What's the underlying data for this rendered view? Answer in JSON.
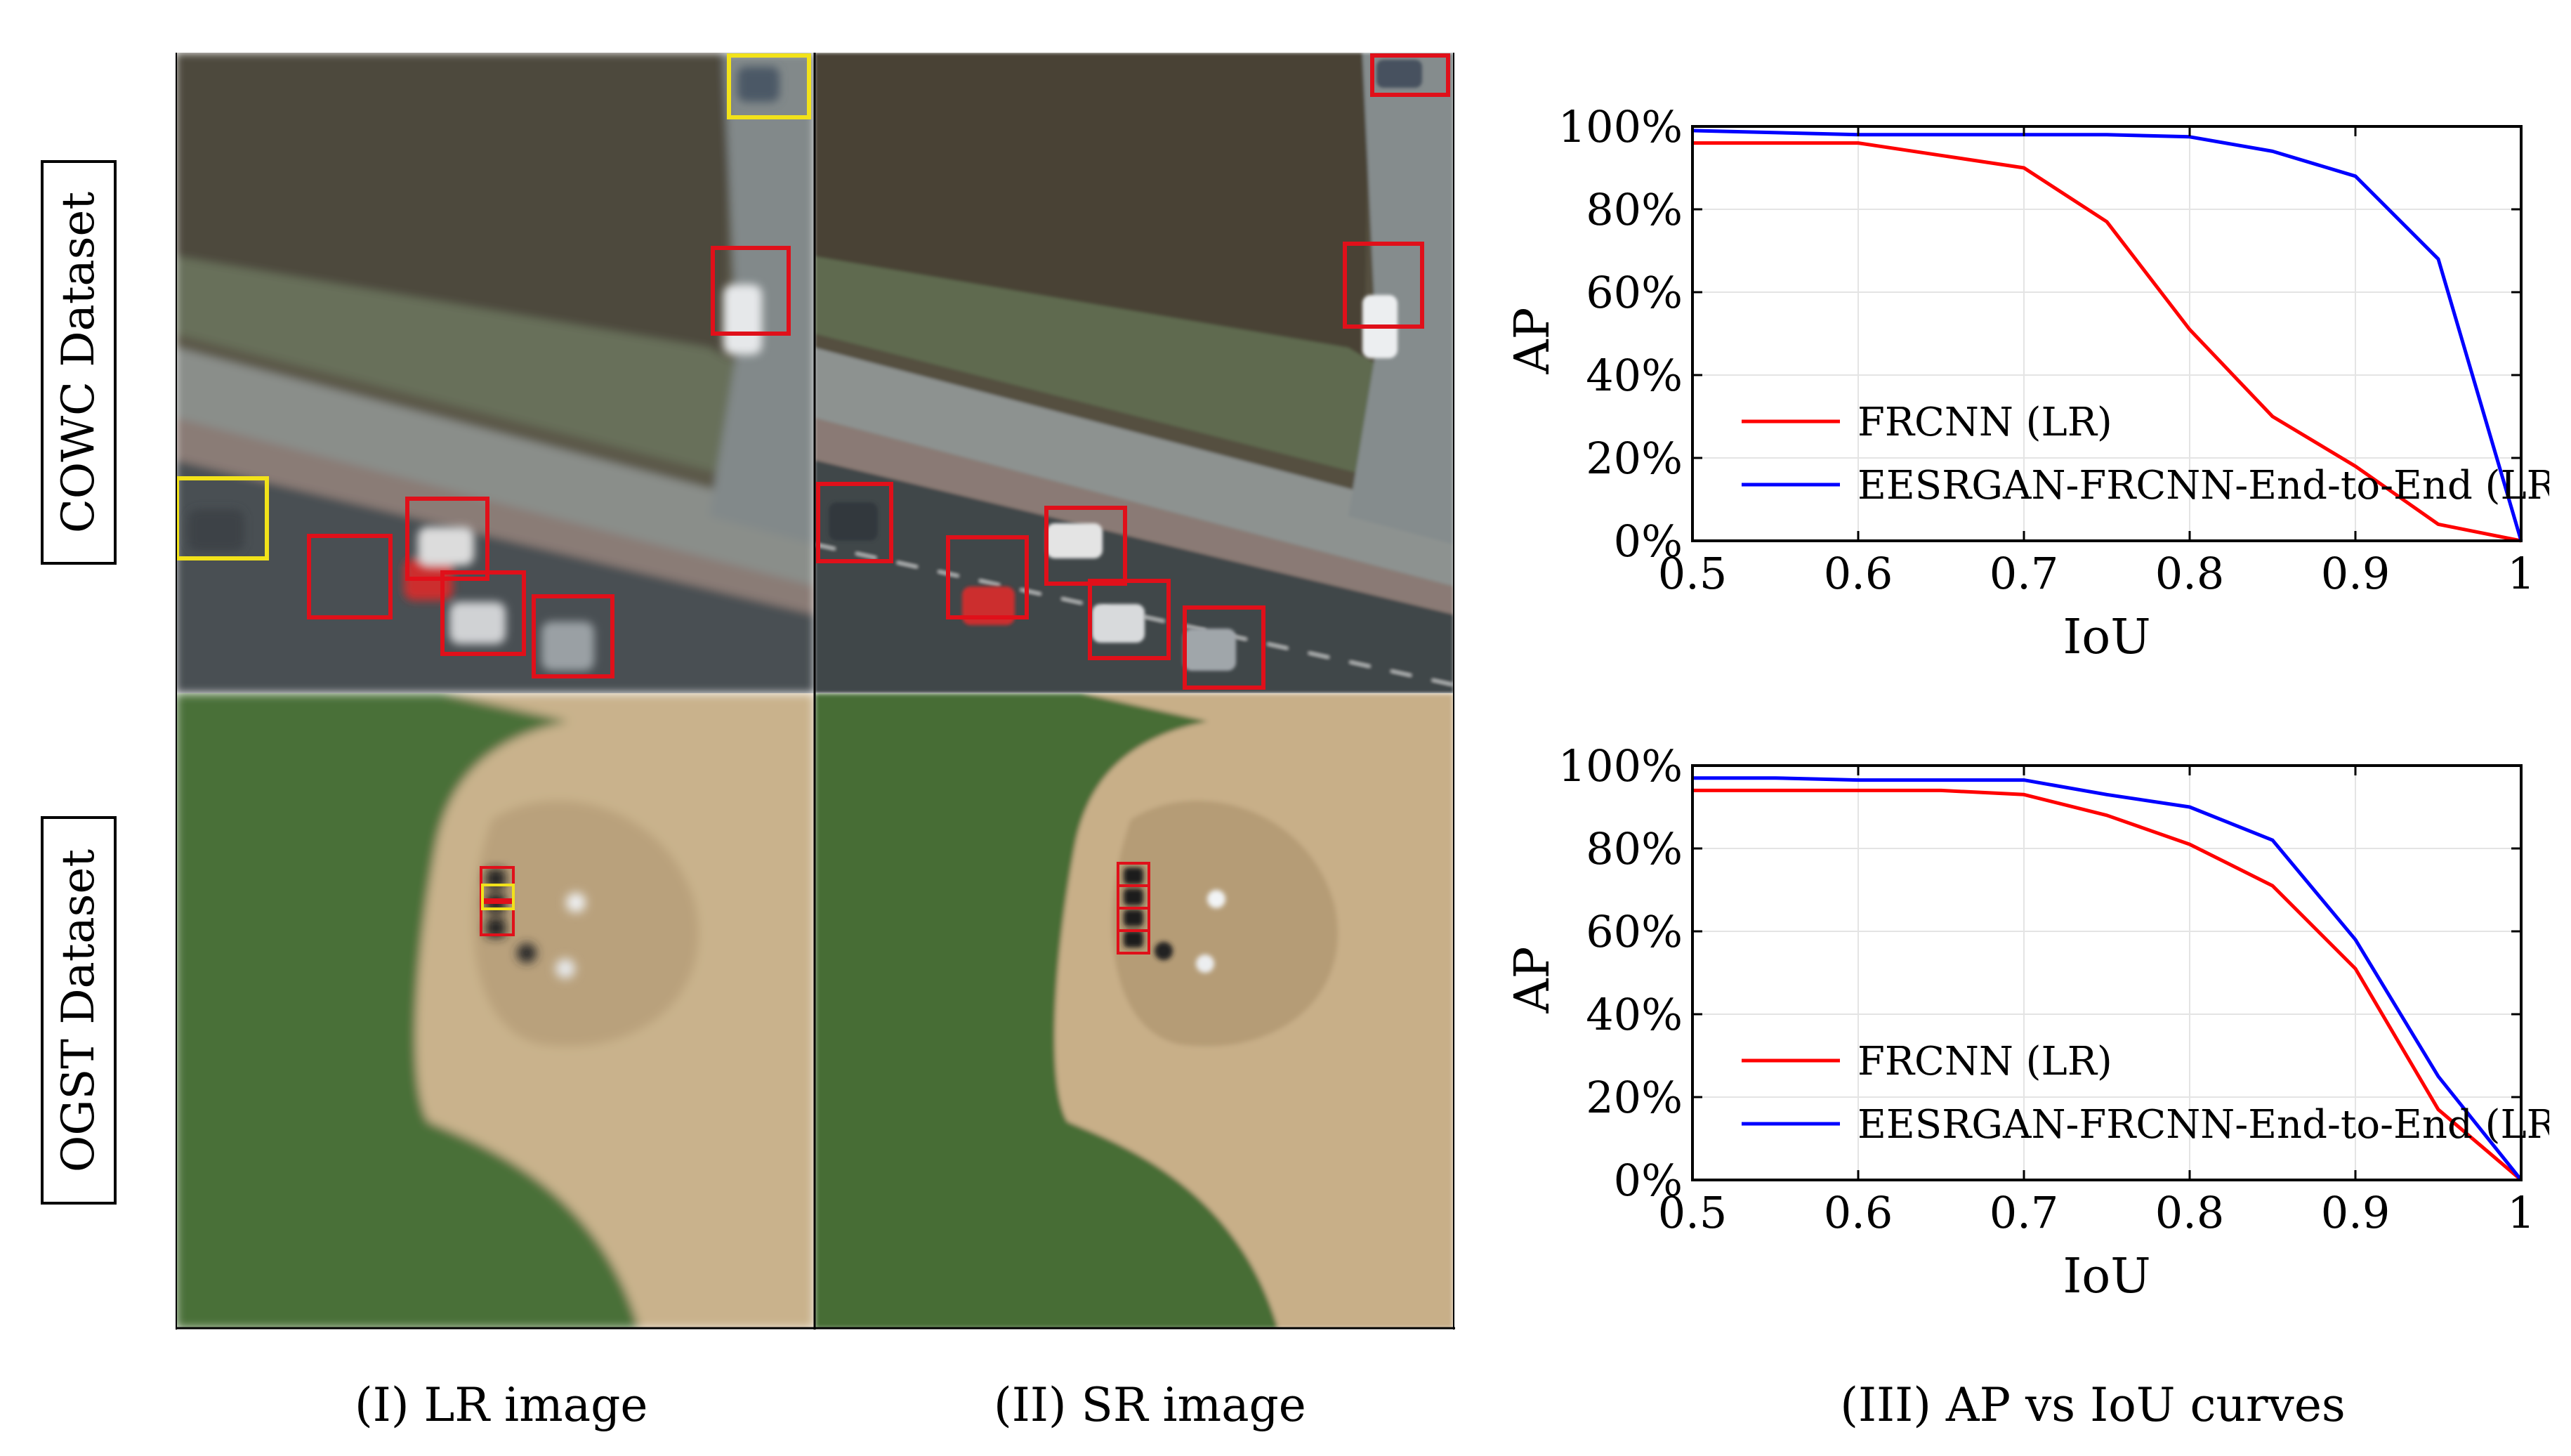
{
  "row_labels": {
    "top": "COWC Dataset",
    "bottom": "OGST Dataset"
  },
  "captions": {
    "lr": "(I) LR image",
    "sr": "(II) SR image",
    "curves": "(III) AP vs IoU curves"
  },
  "colors": {
    "frcnn": "#ff0000",
    "eesrgan": "#0000ff",
    "true_positive_box": "#e0101a",
    "false_negative_box": "#f2e21a"
  },
  "chart_data": [
    {
      "type": "line",
      "dataset": "COWC Dataset",
      "xlabel": "IoU",
      "ylabel": "AP",
      "xlim": [
        0.5,
        1
      ],
      "ylim": [
        0,
        100
      ],
      "x_ticks": [
        "0.5",
        "0.6",
        "0.7",
        "0.8",
        "0.9",
        "1"
      ],
      "y_ticks": [
        "0%",
        "20%",
        "40%",
        "60%",
        "80%",
        "100%"
      ],
      "grid": true,
      "legend_position": "bottom-left",
      "series": [
        {
          "name": "FRCNN (LR)",
          "color": "#ff0000",
          "x": [
            0.5,
            0.6,
            0.65,
            0.7,
            0.75,
            0.8,
            0.85,
            0.9,
            0.95,
            1.0
          ],
          "y": [
            96,
            96,
            93,
            90,
            77,
            51,
            30,
            18,
            4,
            0
          ]
        },
        {
          "name": "EESRGAN-FRCNN-End-to-End (LR)",
          "color": "#0000ff",
          "x": [
            0.5,
            0.6,
            0.7,
            0.75,
            0.8,
            0.85,
            0.9,
            0.95,
            1.0
          ],
          "y": [
            99,
            98,
            98,
            98,
            97.5,
            94,
            88,
            68,
            0
          ]
        }
      ]
    },
    {
      "type": "line",
      "dataset": "OGST Dataset",
      "xlabel": "IoU",
      "ylabel": "AP",
      "xlim": [
        0.5,
        1
      ],
      "ylim": [
        0,
        100
      ],
      "x_ticks": [
        "0.5",
        "0.6",
        "0.7",
        "0.8",
        "0.9",
        "1"
      ],
      "y_ticks": [
        "0%",
        "20%",
        "40%",
        "60%",
        "80%",
        "100%"
      ],
      "grid": true,
      "legend_position": "bottom-left",
      "series": [
        {
          "name": "FRCNN (LR)",
          "color": "#ff0000",
          "x": [
            0.5,
            0.6,
            0.65,
            0.7,
            0.75,
            0.8,
            0.85,
            0.9,
            0.95,
            1.0
          ],
          "y": [
            94,
            94,
            94,
            93,
            88,
            81,
            71,
            51,
            17,
            0
          ]
        },
        {
          "name": "EESRGAN-FRCNN-End-to-End (LR)",
          "color": "#0000ff",
          "x": [
            0.5,
            0.55,
            0.6,
            0.65,
            0.7,
            0.75,
            0.8,
            0.85,
            0.9,
            0.95,
            1.0
          ],
          "y": [
            97,
            97,
            96.5,
            96.5,
            96.5,
            93,
            90,
            82,
            58,
            25,
            0
          ]
        }
      ]
    }
  ]
}
